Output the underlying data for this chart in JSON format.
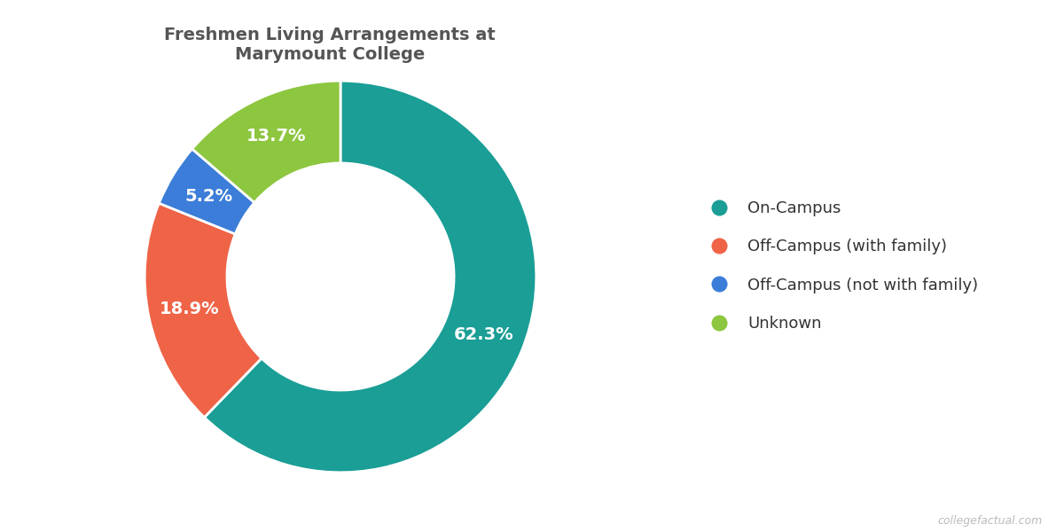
{
  "title": "Freshmen Living Arrangements at\nMarymount College",
  "slices": [
    62.3,
    18.9,
    5.2,
    13.7
  ],
  "labels": [
    "On-Campus",
    "Off-Campus (with family)",
    "Off-Campus (not with family)",
    "Unknown"
  ],
  "colors": [
    "#1A9E96",
    "#EF6347",
    "#3B7DD8",
    "#8DC63F"
  ],
  "pct_labels": [
    "62.3%",
    "18.9%",
    "5.2%",
    "13.7%"
  ],
  "startangle": 90,
  "donut_width": 0.42,
  "label_fontsize": 14,
  "title_fontsize": 14,
  "legend_fontsize": 13,
  "pct_color": "white",
  "background_color": "#ffffff",
  "watermark": "collegefactual.com",
  "title_color": "#555555",
  "legend_text_color": "#333333"
}
